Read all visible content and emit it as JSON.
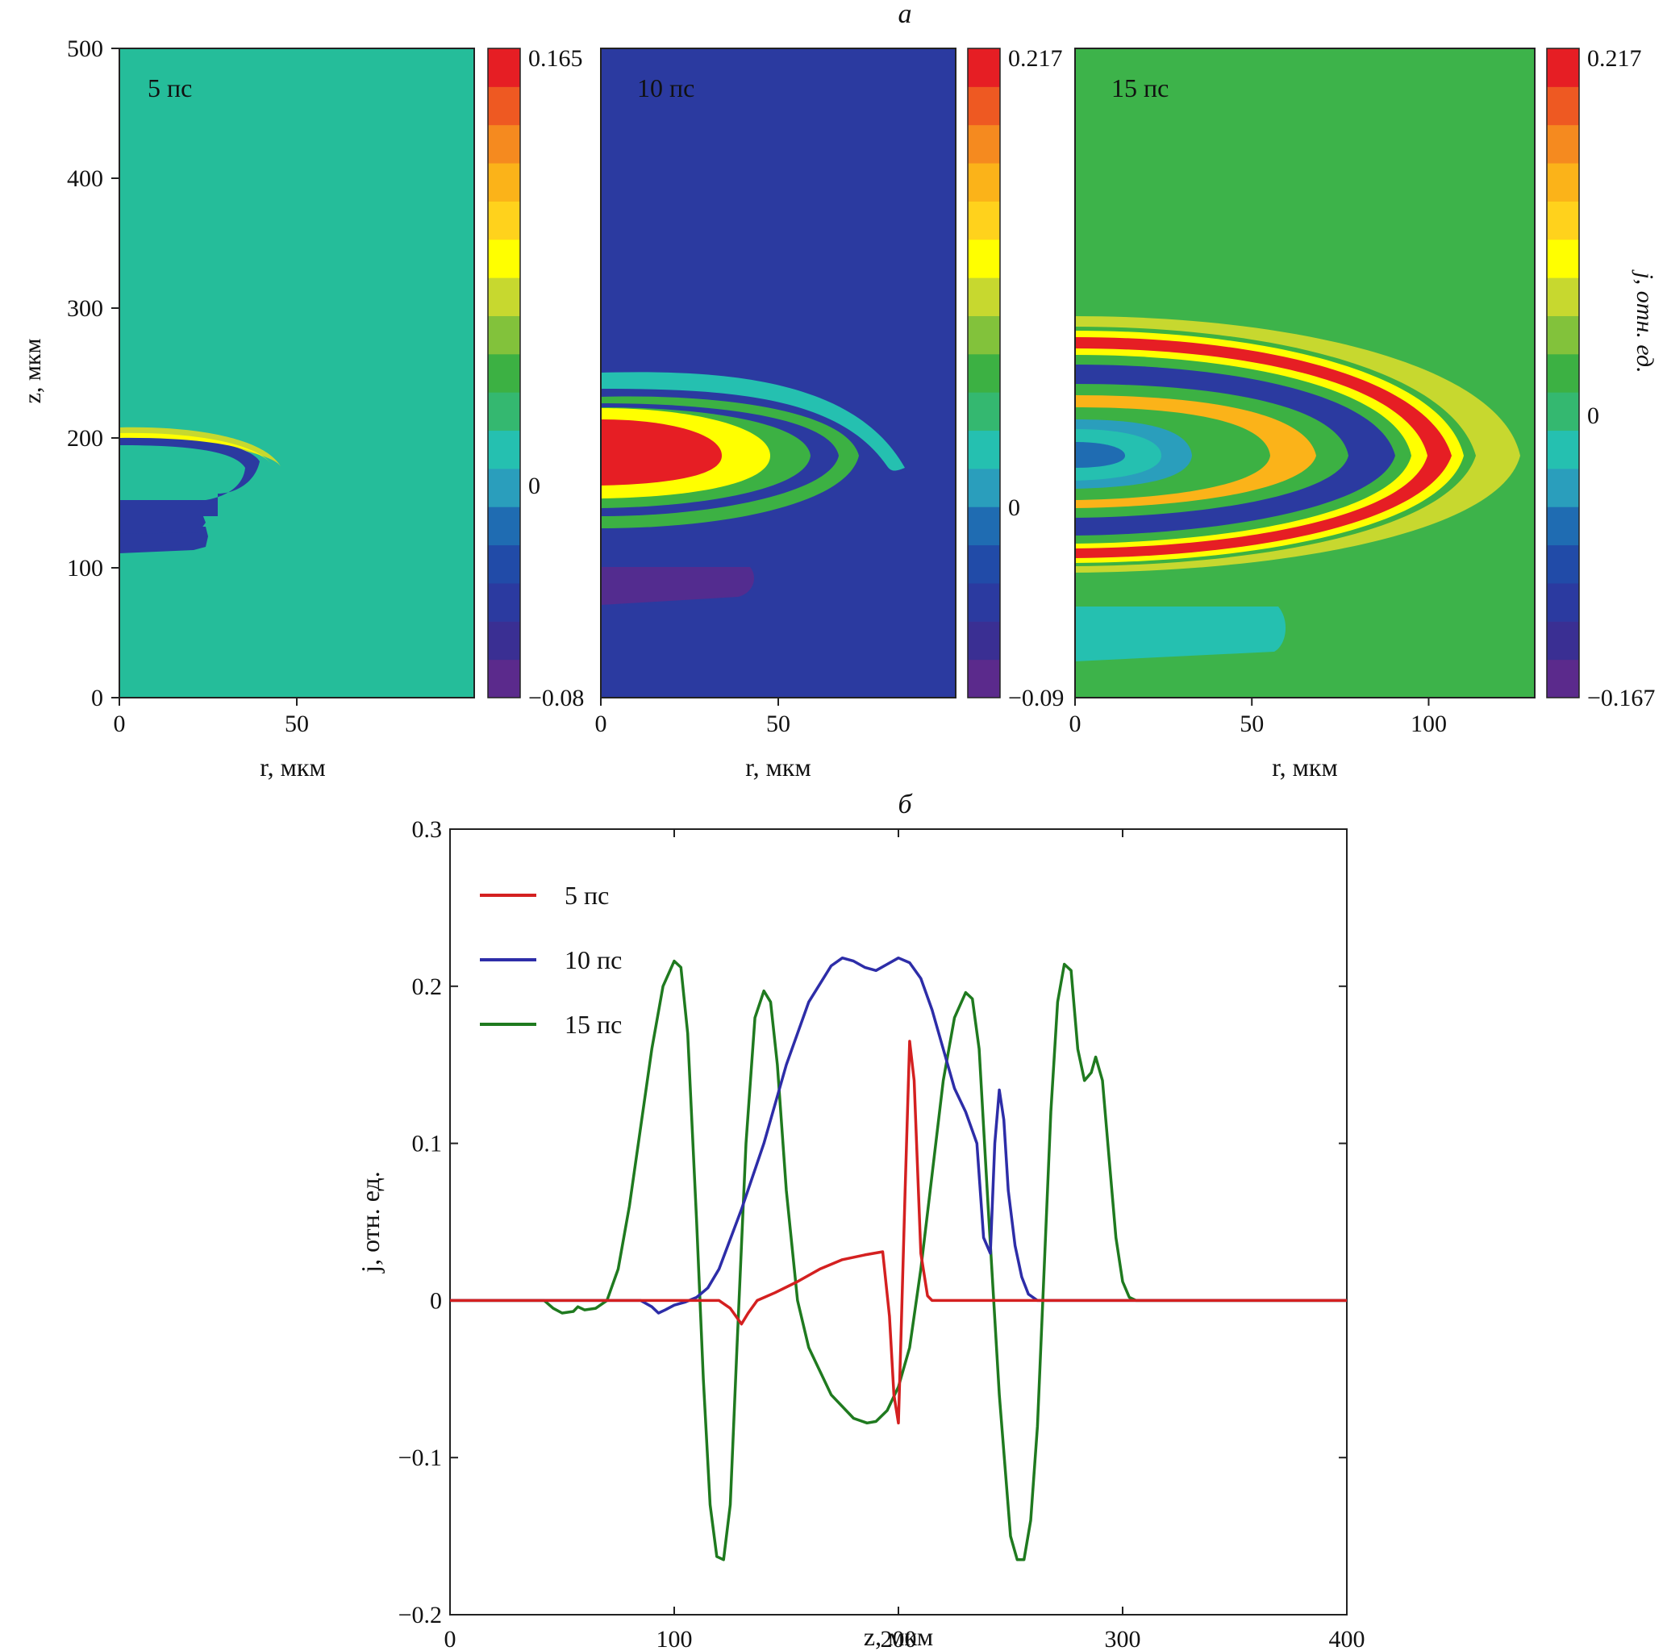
{
  "figure": {
    "label_a": "а",
    "label_b": "б"
  },
  "colors": {
    "scale": [
      "#5b2a8c",
      "#3a2f93",
      "#2b3aa0",
      "#214ba8",
      "#1f6cb2",
      "#2a9ebc",
      "#25c0b0",
      "#34b870",
      "#3cb143",
      "#82c23b",
      "#c7d82f",
      "#ffff00",
      "#ffd21c",
      "#fbb319",
      "#f58a1f",
      "#ee5922",
      "#e61e24"
    ],
    "ring_red": "#e61e24",
    "ring_orange": "#fbb319",
    "ring_yellow": "#ffff00",
    "ring_green": "#3cb143",
    "ring_blue": "#2b3aa0",
    "ring_cyan": "#25c0b0",
    "ring_purple": "#5b2a8c",
    "bg_5": "#25bd9a",
    "bg_10": "#2b3aa0",
    "bg_15": "#3db34a",
    "line_5": "#d42020",
    "line_10": "#2d2da8",
    "line_15": "#1f7a1f"
  },
  "chart_data": [
    {
      "type": "heatmap",
      "panels": [
        {
          "id": "5ps",
          "label": "5 пс",
          "xlim": [
            0,
            100
          ],
          "ylim": [
            0,
            500
          ],
          "xticks": [
            "0",
            "50"
          ],
          "colorbar": {
            "max": "0.165",
            "zero": "0",
            "min": "−0.08"
          }
        },
        {
          "id": "10ps",
          "label": "10 пс",
          "xlim": [
            0,
            100
          ],
          "ylim": [
            0,
            500
          ],
          "xticks": [
            "0",
            "50"
          ],
          "colorbar": {
            "max": "0.217",
            "zero": "0",
            "min": "−0.09"
          }
        },
        {
          "id": "15ps",
          "label": "15 пс",
          "xlim": [
            0,
            130
          ],
          "ylim": [
            0,
            500
          ],
          "xticks": [
            "0",
            "50",
            "100"
          ],
          "colorbar": {
            "max": "0.217",
            "zero": "0",
            "min": "−0.167"
          }
        }
      ],
      "xlabel": "r, мкм",
      "ylabel": "z, мкм",
      "yticks": [
        "0",
        "100",
        "200",
        "300",
        "400",
        "500"
      ],
      "colorbar_label": "j, отн. ед."
    },
    {
      "type": "line",
      "xlabel": "z, мкм",
      "ylabel": "j, отн. ед.",
      "xlim": [
        0,
        400
      ],
      "ylim": [
        -0.2,
        0.3
      ],
      "xticks": [
        "0",
        "100",
        "200",
        "300",
        "400"
      ],
      "yticks": [
        "−0.2",
        "−0.1",
        "0",
        "0.1",
        "0.2",
        "0.3"
      ],
      "legend": [
        "5 пс",
        "10 пс",
        "15 пс"
      ],
      "series": [
        {
          "name": "5 пс",
          "x": [
            0,
            120,
            125,
            130,
            133,
            137,
            145,
            155,
            165,
            175,
            185,
            193,
            196,
            198,
            200,
            201,
            203,
            205,
            207,
            210,
            213,
            215,
            220,
            300,
            400
          ],
          "y": [
            0,
            0,
            -0.005,
            -0.015,
            -0.008,
            0,
            0.005,
            0.012,
            0.02,
            0.026,
            0.029,
            0.031,
            -0.01,
            -0.06,
            -0.078,
            -0.03,
            0.07,
            0.165,
            0.14,
            0.03,
            0.003,
            0,
            0,
            0,
            0
          ]
        },
        {
          "name": "10 пс",
          "x": [
            0,
            85,
            90,
            93,
            96,
            100,
            105,
            110,
            115,
            120,
            130,
            140,
            150,
            160,
            170,
            175,
            180,
            185,
            190,
            195,
            200,
            205,
            210,
            215,
            220,
            225,
            230,
            235,
            238,
            241,
            243,
            245,
            247,
            249,
            252,
            255,
            258,
            262,
            300,
            400
          ],
          "y": [
            0,
            0,
            -0.004,
            -0.008,
            -0.006,
            -0.003,
            -0.001,
            0.002,
            0.008,
            0.02,
            0.058,
            0.1,
            0.15,
            0.19,
            0.213,
            0.218,
            0.216,
            0.212,
            0.21,
            0.214,
            0.218,
            0.215,
            0.205,
            0.185,
            0.16,
            0.135,
            0.12,
            0.1,
            0.04,
            0.03,
            0.1,
            0.134,
            0.115,
            0.07,
            0.035,
            0.015,
            0.004,
            0,
            0,
            0
          ]
        },
        {
          "name": "15 пс",
          "x": [
            0,
            42,
            46,
            50,
            55,
            57,
            60,
            65,
            70,
            75,
            80,
            85,
            90,
            95,
            100,
            103,
            106,
            110,
            113,
            116,
            119,
            122,
            125,
            128,
            132,
            136,
            140,
            143,
            146,
            150,
            155,
            160,
            170,
            180,
            186,
            190,
            195,
            200,
            205,
            210,
            215,
            220,
            225,
            230,
            233,
            236,
            240,
            245,
            250,
            253,
            256,
            259,
            262,
            265,
            268,
            271,
            274,
            277,
            280,
            283,
            286,
            288,
            291,
            294,
            297,
            300,
            303,
            306,
            400
          ],
          "y": [
            0,
            0,
            -0.005,
            -0.008,
            -0.007,
            -0.004,
            -0.006,
            -0.005,
            0,
            0.02,
            0.06,
            0.11,
            0.16,
            0.2,
            0.216,
            0.212,
            0.17,
            0.05,
            -0.05,
            -0.13,
            -0.163,
            -0.165,
            -0.13,
            -0.03,
            0.1,
            0.18,
            0.197,
            0.19,
            0.15,
            0.07,
            0,
            -0.03,
            -0.06,
            -0.075,
            -0.078,
            -0.077,
            -0.07,
            -0.055,
            -0.03,
            0.02,
            0.08,
            0.14,
            0.18,
            0.196,
            0.192,
            0.16,
            0.06,
            -0.06,
            -0.15,
            -0.165,
            -0.165,
            -0.14,
            -0.08,
            0.02,
            0.12,
            0.19,
            0.214,
            0.21,
            0.16,
            0.14,
            0.145,
            0.155,
            0.14,
            0.09,
            0.04,
            0.012,
            0.002,
            0,
            0
          ]
        }
      ]
    }
  ]
}
